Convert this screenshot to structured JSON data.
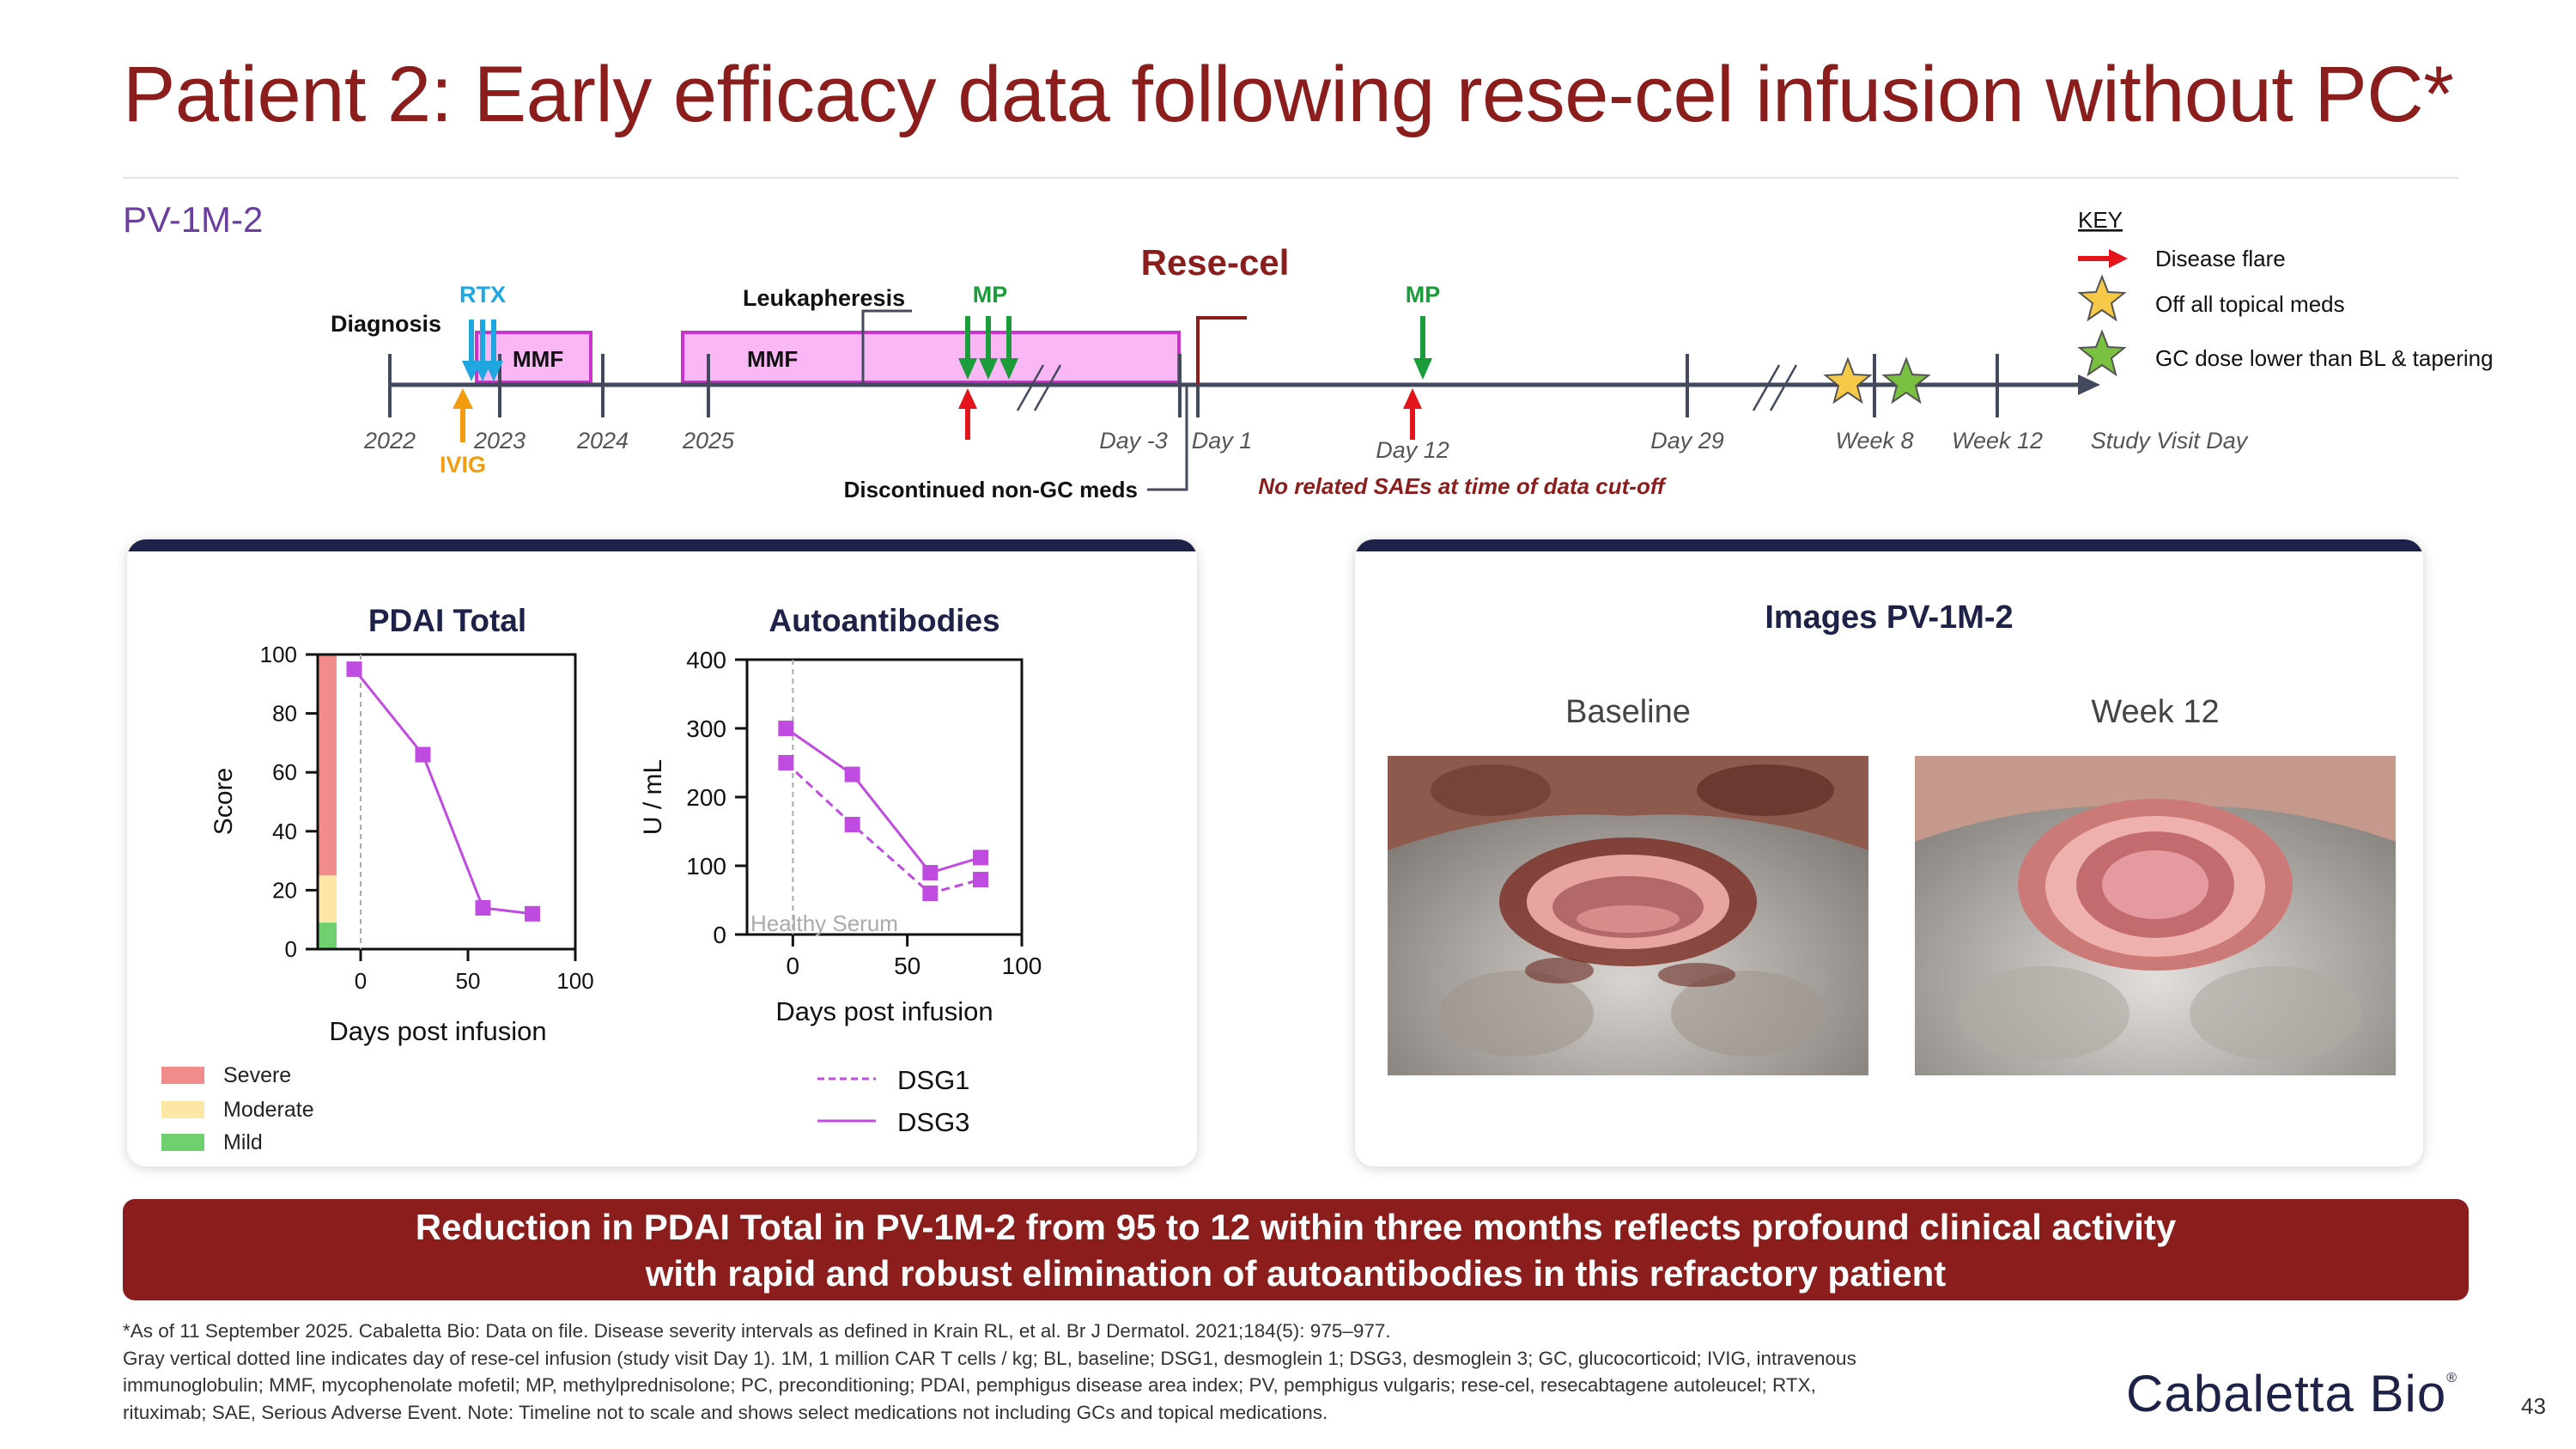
{
  "title": "Patient 2: Early efficacy data following rese-cel infusion without PC*",
  "patient_id": "PV-1M-2",
  "timeline": {
    "header": "Rese-cel",
    "labels": {
      "diagnosis": "Diagnosis",
      "rtx": "RTX",
      "ivig": "IVIG",
      "mmf1": "MMF",
      "mmf2": "MMF",
      "leukapheresis": "Leukapheresis",
      "mp1": "MP",
      "mp2": "MP",
      "discontinued": "Discontinued non-GC meds",
      "no_sae": "No related SAEs at time of data cut-off"
    },
    "ticks": [
      "2022",
      "2023",
      "2024",
      "2025",
      "Day -3",
      "Day 1",
      "Day 12",
      "Day 29",
      "Week 8",
      "Week 12"
    ],
    "axis_label": "Study Visit Day"
  },
  "key": {
    "title": "KEY",
    "items": [
      "Disease flare",
      "Off all topical meds",
      "GC dose lower than BL & tapering"
    ]
  },
  "chart_data": [
    {
      "type": "line",
      "title": "PDAI Total",
      "xlabel": "Days post infusion",
      "ylabel": "Score",
      "xlim": [
        -20,
        100
      ],
      "ylim": [
        0,
        100
      ],
      "xticks": [
        "0",
        "50",
        "100"
      ],
      "yticks": [
        "0",
        "20",
        "40",
        "60",
        "80",
        "100"
      ],
      "series": [
        {
          "name": "PDAI Total",
          "x": [
            -3,
            29,
            57,
            80
          ],
          "y": [
            95,
            66,
            14,
            12
          ]
        }
      ],
      "bands": [
        {
          "name": "Severe",
          "from": 25,
          "to": 100,
          "color": "#f28b8b"
        },
        {
          "name": "Moderate",
          "from": 9,
          "to": 25,
          "color": "#fde7a6"
        },
        {
          "name": "Mild",
          "from": 0,
          "to": 9,
          "color": "#6fd06f"
        }
      ],
      "legend": [
        "Severe",
        "Moderate",
        "Mild"
      ]
    },
    {
      "type": "line",
      "title": "Autoantibodies",
      "xlabel": "Days post infusion",
      "ylabel": "U / mL",
      "xlim": [
        -20,
        100
      ],
      "ylim": [
        0,
        400
      ],
      "xticks": [
        "0",
        "50",
        "100"
      ],
      "yticks": [
        "0",
        "100",
        "200",
        "300",
        "400"
      ],
      "annotation": "Healthy Serum",
      "series": [
        {
          "name": "DSG1",
          "x": [
            -3,
            26,
            60,
            82
          ],
          "y": [
            250,
            160,
            60,
            80
          ],
          "style": "dashed"
        },
        {
          "name": "DSG3",
          "x": [
            -3,
            26,
            60,
            82
          ],
          "y": [
            300,
            233,
            90,
            112
          ],
          "style": "solid"
        }
      ],
      "legend": [
        "DSG1",
        "DSG3"
      ]
    }
  ],
  "images": {
    "title": "Images PV-1M-2",
    "baseline": "Baseline",
    "week12": "Week 12"
  },
  "summary": {
    "line1": "Reduction in PDAI Total in PV-1M-2 from 95 to 12 within three months reflects profound clinical activity",
    "line2": "with rapid and robust elimination of autoantibodies in this refractory patient"
  },
  "footnote": {
    "line1": "*As of 11 September 2025. Cabaletta Bio: Data on file. Disease severity intervals as defined in Krain RL, et al. Br J Dermatol. 2021;184(5): 975–977.",
    "line2": "Gray vertical dotted line indicates day of rese-cel infusion (study visit Day 1). 1M, 1 million CAR T cells / kg; BL, baseline; DSG1, desmoglein 1; DSG3, desmoglein 3; GC, glucocorticoid; IVIG, intravenous",
    "line3": "immunoglobulin; MMF, mycophenolate mofetil; MP, methylprednisolone; PC, preconditioning; PDAI, pemphigus disease area index; PV, pemphigus vulgaris; rese-cel, resecabtagene autoleucel; RTX,",
    "line4": "rituximab; SAE, Serious Adverse Event. Note: Timeline not to scale and shows select medications not including GCs and topical medications."
  },
  "logo": "Cabaletta Bio",
  "logo_mark": "®",
  "page_number": "43",
  "colors": {
    "title": "#8b1d1d",
    "purple": "#6a3fa0",
    "navy": "#1f2248",
    "rtx": "#1ea7e1",
    "ivig": "#f39c12",
    "mp": "#1a9c3a",
    "flare": "#e3141b",
    "mmf_fill": "#f9b8f5",
    "mmf_border": "#cc33cc",
    "series": "#c04be0"
  }
}
